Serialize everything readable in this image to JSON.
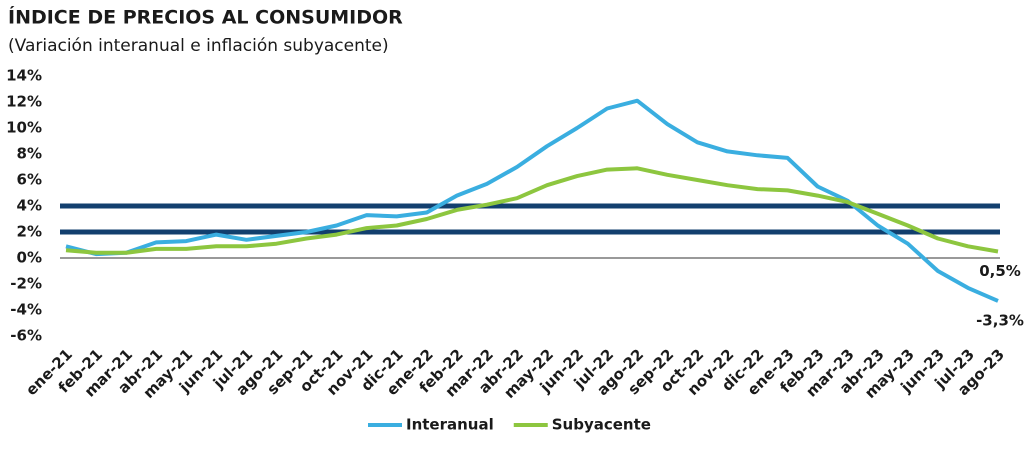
{
  "chart_data": {
    "type": "line",
    "title": "ÍNDICE DE PRECIOS AL CONSUMIDOR",
    "subtitle": "(Variación interanual e inflación subyacente)",
    "categories": [
      "ene-21",
      "feb-21",
      "mar-21",
      "abr-21",
      "may-21",
      "jun-21",
      "jul-21",
      "ago-21",
      "sep-21",
      "oct-21",
      "nov-21",
      "dic-21",
      "ene-22",
      "feb-22",
      "mar-22",
      "abr-22",
      "may-22",
      "jun-22",
      "jul-22",
      "ago-22",
      "sep-22",
      "oct-22",
      "nov-22",
      "dic-22",
      "ene-23",
      "feb-23",
      "mar-23",
      "abr-23",
      "may-23",
      "jun-23",
      "jul-23",
      "ago-23"
    ],
    "series": [
      {
        "name": "Interanual",
        "color": "#3aaee0",
        "values": [
          0.9,
          0.3,
          0.4,
          1.2,
          1.3,
          1.8,
          1.4,
          1.7,
          2.0,
          2.5,
          3.3,
          3.2,
          3.5,
          4.8,
          5.7,
          7.0,
          8.6,
          10.0,
          11.5,
          12.1,
          10.3,
          8.9,
          8.2,
          7.9,
          7.7,
          5.5,
          4.4,
          2.5,
          1.1,
          -1.0,
          -2.3,
          -3.3
        ],
        "value_labels": [
          null,
          null,
          null,
          null,
          null,
          null,
          null,
          null,
          null,
          null,
          null,
          null,
          null,
          null,
          null,
          null,
          null,
          null,
          null,
          null,
          null,
          null,
          null,
          null,
          null,
          null,
          null,
          null,
          null,
          null,
          null,
          "-3,3%"
        ]
      },
      {
        "name": "Subyacente",
        "color": "#8dc63f",
        "values": [
          0.6,
          0.4,
          0.4,
          0.7,
          0.7,
          0.9,
          0.9,
          1.1,
          1.5,
          1.8,
          2.3,
          2.5,
          3.0,
          3.7,
          4.1,
          4.6,
          5.6,
          6.3,
          6.8,
          6.9,
          6.4,
          6.0,
          5.6,
          5.3,
          5.2,
          4.8,
          4.3,
          3.4,
          2.5,
          1.5,
          0.9,
          0.5
        ],
        "value_labels": [
          null,
          null,
          null,
          null,
          null,
          null,
          null,
          null,
          null,
          null,
          null,
          null,
          null,
          null,
          null,
          null,
          null,
          null,
          null,
          null,
          null,
          null,
          null,
          null,
          null,
          null,
          null,
          null,
          null,
          null,
          null,
          "0,5%"
        ]
      }
    ],
    "reference_lines": [
      2,
      4
    ],
    "reference_color": "#123f6e",
    "ylim": [
      -6,
      14
    ],
    "yticks": [
      {
        "value": -6,
        "label": "-6%"
      },
      {
        "value": -4,
        "label": "-4%"
      },
      {
        "value": -2,
        "label": "-2%"
      },
      {
        "value": 0,
        "label": "0%"
      },
      {
        "value": 2,
        "label": "2%"
      },
      {
        "value": 4,
        "label": "4%"
      },
      {
        "value": 6,
        "label": "6%"
      },
      {
        "value": 8,
        "label": "8%"
      },
      {
        "value": 10,
        "label": "10%"
      },
      {
        "value": 12,
        "label": "12%"
      },
      {
        "value": 14,
        "label": "14%"
      }
    ],
    "grid": false,
    "legend": "bottom"
  }
}
